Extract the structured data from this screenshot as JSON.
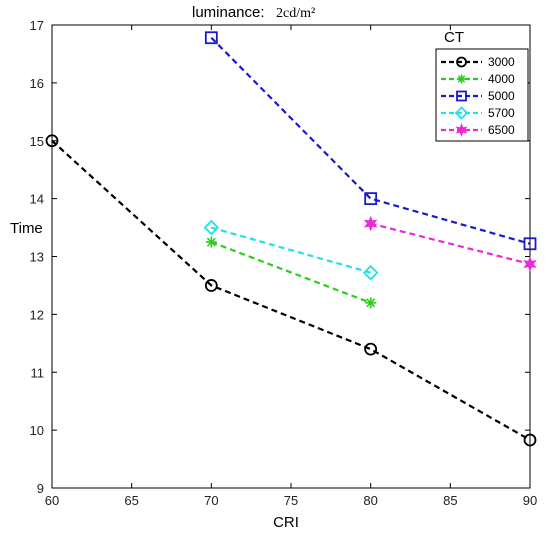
{
  "chart_data": {
    "type": "line",
    "title_main": "luminance:",
    "title_unit": "2cd/m²",
    "xlabel": "CRI",
    "ylabel": "Time",
    "xlim": [
      60,
      90
    ],
    "ylim": [
      9,
      17
    ],
    "xticks": [
      60,
      65,
      70,
      75,
      80,
      85,
      90
    ],
    "yticks": [
      9,
      10,
      11,
      12,
      13,
      14,
      15,
      16,
      17
    ],
    "grid": false,
    "legend_title": "CT",
    "legend_position": "top-right",
    "series": [
      {
        "name": "3000",
        "color": "#000000",
        "marker": "circle",
        "x": [
          60,
          70,
          80,
          90
        ],
        "y": [
          15.0,
          12.5,
          11.4,
          9.83
        ]
      },
      {
        "name": "4000",
        "color": "#2ecc1e",
        "marker": "asterisk",
        "x": [
          70,
          80
        ],
        "y": [
          13.25,
          12.2
        ]
      },
      {
        "name": "5000",
        "color": "#1a1acd",
        "marker": "square",
        "x": [
          70,
          80,
          90
        ],
        "y": [
          16.78,
          14.0,
          13.22
        ]
      },
      {
        "name": "5700",
        "color": "#22e0e8",
        "marker": "diamond",
        "x": [
          70,
          80
        ],
        "y": [
          13.5,
          12.72
        ]
      },
      {
        "name": "6500",
        "color": "#e82ad8",
        "marker": "hexagram",
        "x": [
          80,
          90
        ],
        "y": [
          13.57,
          12.87
        ]
      }
    ]
  }
}
